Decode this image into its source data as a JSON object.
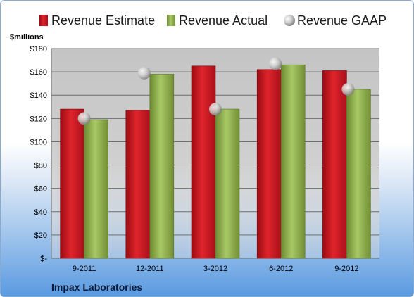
{
  "chart_data": {
    "type": "bar",
    "categories": [
      "9-2011",
      "12-2011",
      "3-2012",
      "6-2012",
      "9-2012"
    ],
    "series": [
      {
        "name": "Revenue Estimate",
        "values": [
          128,
          127,
          165,
          162,
          161
        ]
      },
      {
        "name": "Revenue Actual",
        "values": [
          119,
          158,
          128,
          166,
          145
        ]
      },
      {
        "name": "Revenue GAAP",
        "values": [
          120,
          159,
          128,
          167,
          145
        ]
      }
    ],
    "series_colors": [
      "#c8141c",
      "#8fb04a",
      "#c8c8c8"
    ],
    "ylabel": "$millions",
    "ylim": [
      0,
      180
    ],
    "ytick_values": [
      0,
      20,
      40,
      60,
      80,
      100,
      120,
      140,
      160,
      180
    ],
    "ytick_labels": [
      "$-",
      "$20",
      "$40",
      "$60",
      "$80",
      "$100",
      "$120",
      "$140",
      "$160",
      "$180"
    ],
    "grid": true,
    "legend_position": "top",
    "footer": "Impax Laboratories"
  }
}
